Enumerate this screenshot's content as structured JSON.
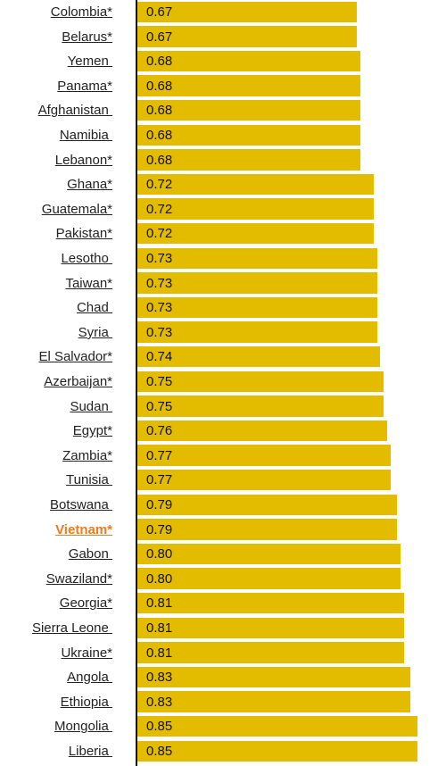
{
  "chart_data": {
    "type": "bar",
    "orientation": "horizontal",
    "highlight_color": "#f07a1e",
    "bar_color": "#e3bc00",
    "categories": [
      "Colombia*",
      "Belarus*",
      "Yemen ",
      "Panama*",
      "Afghanistan ",
      "Namibia ",
      "Lebanon*",
      "Ghana*",
      "Guatemala*",
      "Pakistan*",
      "Lesotho ",
      "Taiwan*",
      "Chad ",
      "Syria ",
      "El Salvador*",
      "Azerbaijan*",
      "Sudan ",
      "Egypt*",
      "Zambia*",
      "Tunisia ",
      "Botswana ",
      "Vietnam*",
      "Gabon ",
      "Swaziland*",
      "Georgia*",
      "Sierra Leone ",
      "Ukraine*",
      "Angola ",
      "Ethiopia ",
      "Mongolia ",
      "Liberia "
    ],
    "value_labels": [
      "0.67",
      "0.67",
      "0.68",
      "0.68",
      "0.68",
      "0.68",
      "0.68",
      "0.72",
      "0.72",
      "0.72",
      "0.73",
      "0.73",
      "0.73",
      "0.73",
      "0.74",
      "0.75",
      "0.75",
      "0.76",
      "0.77",
      "0.77",
      "0.79",
      "0.79",
      "0.80",
      "0.80",
      "0.81",
      "0.81",
      "0.81",
      "0.83",
      "0.83",
      "0.85",
      "0.85"
    ],
    "values": [
      0.67,
      0.67,
      0.68,
      0.68,
      0.68,
      0.68,
      0.68,
      0.72,
      0.72,
      0.72,
      0.73,
      0.73,
      0.73,
      0.73,
      0.74,
      0.75,
      0.75,
      0.76,
      0.77,
      0.77,
      0.79,
      0.79,
      0.8,
      0.8,
      0.81,
      0.81,
      0.81,
      0.83,
      0.83,
      0.85,
      0.85
    ],
    "highlighted": [
      "Vietnam*"
    ]
  }
}
